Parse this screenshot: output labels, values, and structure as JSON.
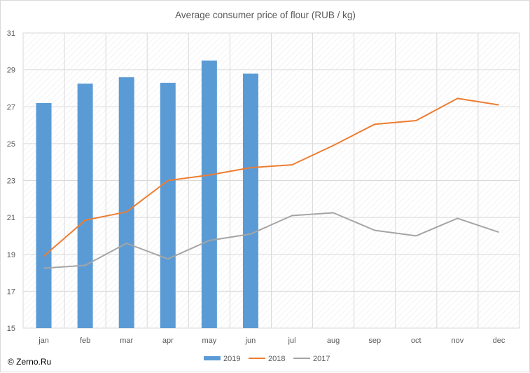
{
  "chart_data": {
    "type": "bar",
    "title": "Average consumer price of flour (RUB / kg)",
    "categories": [
      "jan",
      "feb",
      "mar",
      "apr",
      "may",
      "jun",
      "jul",
      "aug",
      "sep",
      "oct",
      "nov",
      "dec"
    ],
    "ylim": [
      15,
      31
    ],
    "yticks": [
      15,
      17,
      19,
      21,
      23,
      25,
      27,
      29,
      31
    ],
    "grid": true,
    "legend_position": "bottom",
    "series": [
      {
        "name": "2019",
        "kind": "bar",
        "color": "#5b9bd5",
        "values": [
          27.2,
          28.25,
          28.6,
          28.3,
          29.5,
          28.8,
          null,
          null,
          null,
          null,
          null,
          null
        ]
      },
      {
        "name": "2018",
        "kind": "line",
        "color": "#ed7d31",
        "values": [
          18.9,
          20.85,
          21.3,
          23.0,
          23.3,
          23.7,
          23.85,
          24.9,
          26.05,
          26.25,
          27.45,
          27.1
        ]
      },
      {
        "name": "2017",
        "kind": "line",
        "color": "#a5a5a5",
        "values": [
          18.25,
          18.4,
          19.6,
          18.75,
          19.75,
          20.1,
          21.1,
          21.25,
          20.3,
          20.0,
          20.95,
          20.2
        ]
      }
    ]
  },
  "credit": "© Zerno.Ru"
}
